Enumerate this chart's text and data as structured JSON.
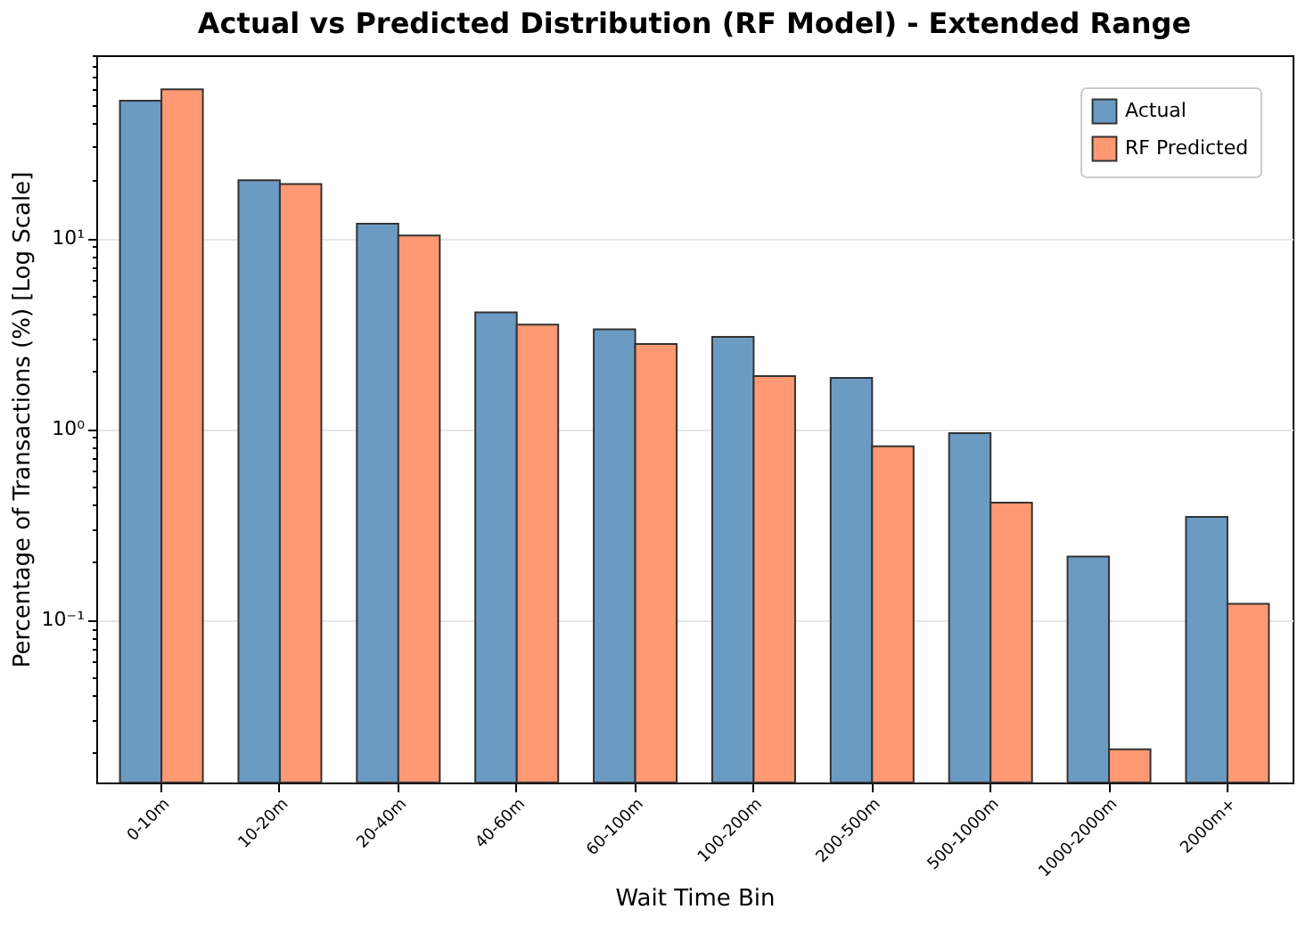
{
  "chart_data": {
    "type": "bar",
    "title": "Actual vs Predicted Distribution (RF Model) - Extended Range",
    "xlabel": "Wait Time Bin",
    "ylabel": "Percentage of Transactions (%) [Log Scale]",
    "categories": [
      "0-10m",
      "10-20m",
      "20-40m",
      "40-60m",
      "60-100m",
      "100-200m",
      "200-500m",
      "500-1000m",
      "1000-2000m",
      "2000m+"
    ],
    "series": [
      {
        "name": "Actual",
        "color": "#6b9bc3",
        "values": [
          52.5,
          20.1,
          11.9,
          4.08,
          3.32,
          3.03,
          1.85,
          0.95,
          0.214,
          0.345
        ]
      },
      {
        "name": "RF Predicted",
        "color": "#ff9973",
        "values": [
          60.1,
          19.2,
          10.3,
          3.52,
          2.78,
          1.89,
          0.81,
          0.41,
          0.0209,
          0.121
        ]
      }
    ],
    "log": true,
    "ylim": [
      0.014,
      90.8
    ],
    "yticks": [
      {
        "value": 0.02,
        "label": null
      },
      {
        "value": 0.03,
        "label": null
      },
      {
        "value": 0.04,
        "label": null
      },
      {
        "value": 0.05,
        "label": null
      },
      {
        "value": 0.06,
        "label": null
      },
      {
        "value": 0.07,
        "label": null
      },
      {
        "value": 0.08,
        "label": null
      },
      {
        "value": 0.09,
        "label": null
      },
      {
        "value": 0.1,
        "label": "10⁻¹"
      },
      {
        "value": 0.2,
        "label": null
      },
      {
        "value": 0.3,
        "label": null
      },
      {
        "value": 0.4,
        "label": null
      },
      {
        "value": 0.5,
        "label": null
      },
      {
        "value": 0.6,
        "label": null
      },
      {
        "value": 0.7,
        "label": null
      },
      {
        "value": 0.8,
        "label": null
      },
      {
        "value": 0.9,
        "label": null
      },
      {
        "value": 1,
        "label": "10⁰"
      },
      {
        "value": 2,
        "label": null
      },
      {
        "value": 3,
        "label": null
      },
      {
        "value": 4,
        "label": null
      },
      {
        "value": 5,
        "label": null
      },
      {
        "value": 6,
        "label": null
      },
      {
        "value": 7,
        "label": null
      },
      {
        "value": 8,
        "label": null
      },
      {
        "value": 9,
        "label": null
      },
      {
        "value": 10,
        "label": "10¹"
      },
      {
        "value": 20,
        "label": null
      },
      {
        "value": 30,
        "label": null
      },
      {
        "value": 40,
        "label": null
      },
      {
        "value": 50,
        "label": null
      },
      {
        "value": 60,
        "label": null
      },
      {
        "value": 70,
        "label": null
      },
      {
        "value": 80,
        "label": null
      },
      {
        "value": 90,
        "label": null
      }
    ],
    "grid": "y",
    "legend": "top right"
  }
}
